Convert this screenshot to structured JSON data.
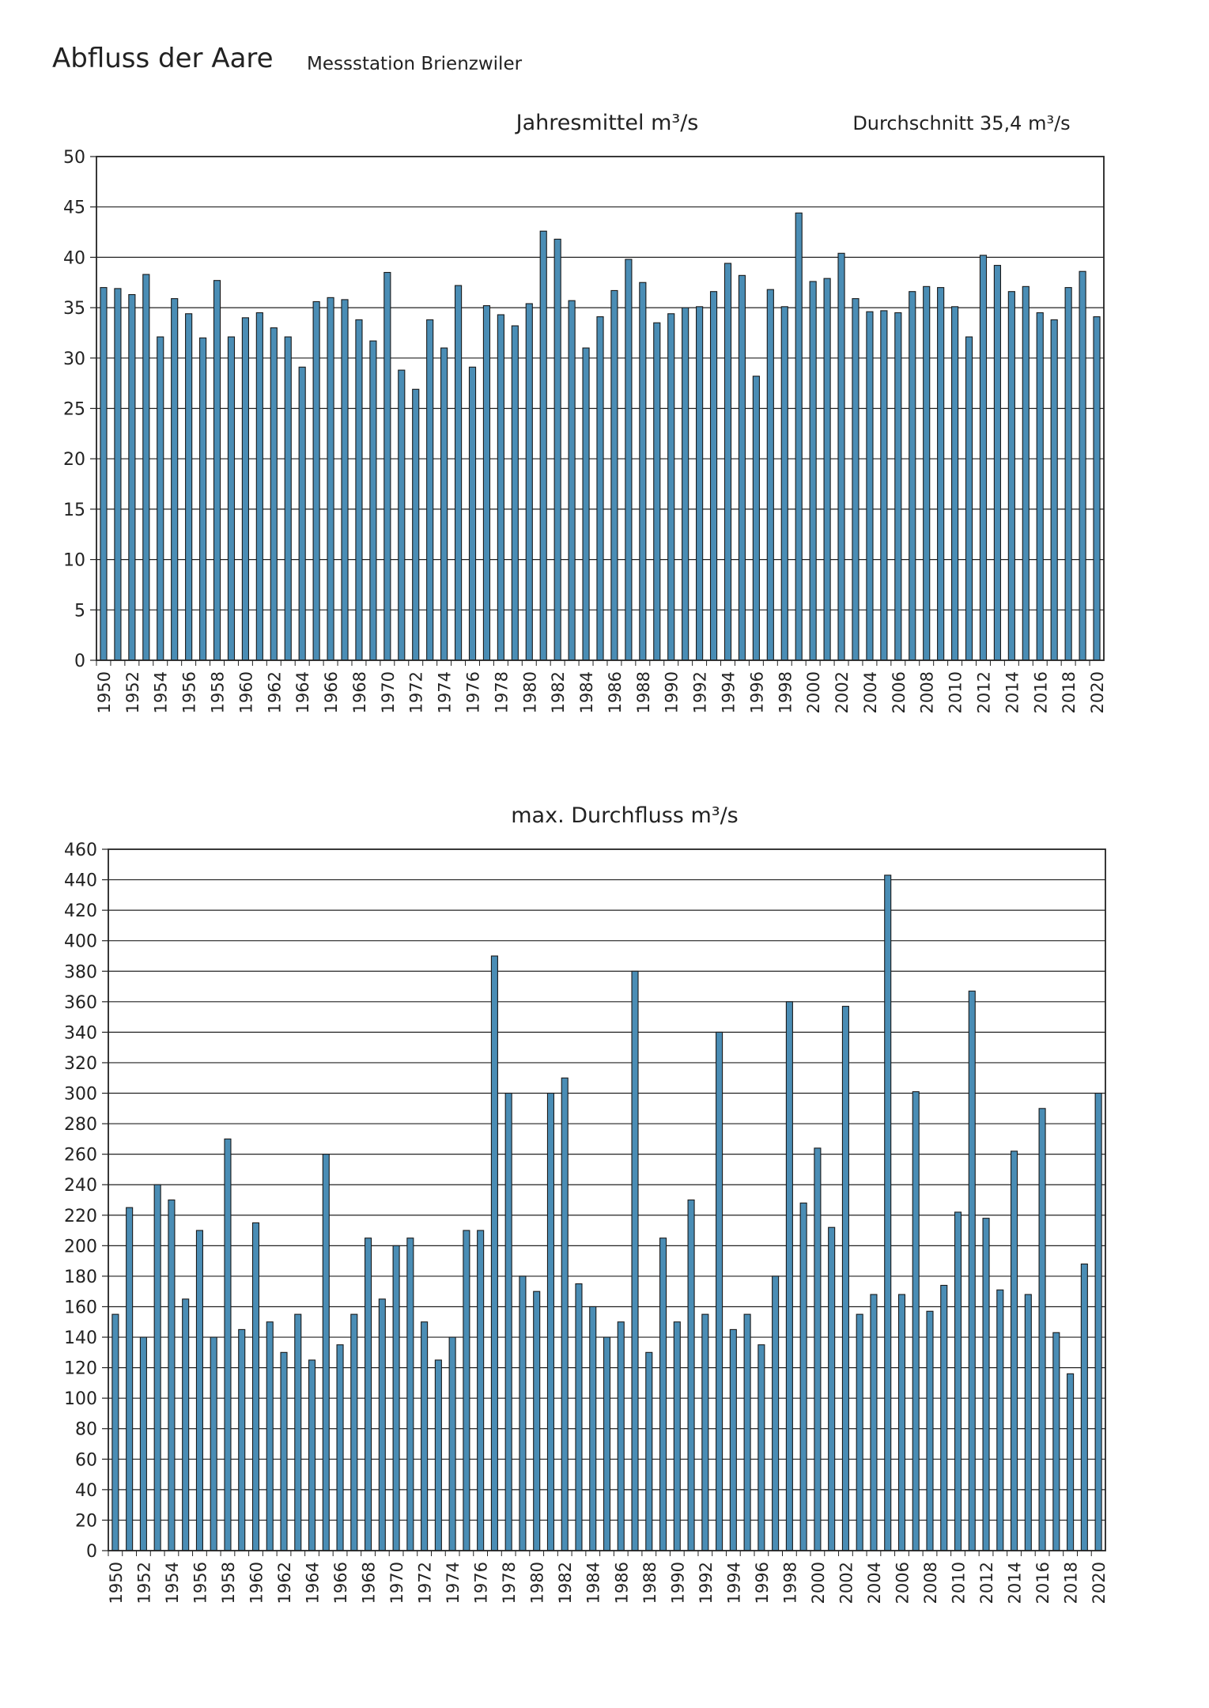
{
  "header": {
    "title": "Abfluss der Aare",
    "subtitle": "Messstation Brienzwiler"
  },
  "chart_data": [
    {
      "type": "bar",
      "title": "Jahresmittel m³/s",
      "annotation": "Durchschnitt 35,4 m³/s",
      "xlabel": "",
      "ylabel": "",
      "ylim": [
        0,
        50
      ],
      "yticks": [
        0,
        5,
        10,
        15,
        20,
        25,
        30,
        35,
        40,
        45,
        50
      ],
      "grid": true,
      "x_labels": [
        "1950",
        "1952",
        "1954",
        "1956",
        "1958",
        "1960",
        "1962",
        "1964",
        "1966",
        "1968",
        "1970",
        "1972",
        "1974",
        "1976",
        "1978",
        "1980",
        "1982",
        "1984",
        "1986",
        "1988",
        "1990",
        "1992",
        "1994",
        "1996",
        "1998",
        "2000",
        "2002",
        "2004",
        "2006",
        "2008",
        "2010",
        "2012",
        "2014",
        "2016",
        "2018",
        "2020"
      ],
      "categories": [
        1950,
        1951,
        1952,
        1953,
        1954,
        1955,
        1956,
        1957,
        1958,
        1959,
        1960,
        1961,
        1962,
        1963,
        1964,
        1965,
        1966,
        1967,
        1968,
        1969,
        1970,
        1971,
        1972,
        1973,
        1974,
        1975,
        1976,
        1977,
        1978,
        1979,
        1980,
        1981,
        1982,
        1983,
        1984,
        1985,
        1986,
        1987,
        1988,
        1989,
        1990,
        1991,
        1992,
        1993,
        1994,
        1995,
        1996,
        1997,
        1998,
        1999,
        2000,
        2001,
        2002,
        2003,
        2004,
        2005,
        2006,
        2007,
        2008,
        2009,
        2010,
        2011,
        2012,
        2013,
        2014,
        2015,
        2016,
        2017,
        2018,
        2019,
        2020
      ],
      "values": [
        37.0,
        36.9,
        36.3,
        38.3,
        32.1,
        35.9,
        34.4,
        32.0,
        37.7,
        32.1,
        34.0,
        34.5,
        33.0,
        32.1,
        29.1,
        35.6,
        36.0,
        35.8,
        33.8,
        31.7,
        38.5,
        28.8,
        26.9,
        33.8,
        31.0,
        37.2,
        29.1,
        35.2,
        34.3,
        33.2,
        35.4,
        42.6,
        41.8,
        35.7,
        31.0,
        34.1,
        36.7,
        39.8,
        37.5,
        33.5,
        34.4,
        35.0,
        35.1,
        36.6,
        39.4,
        38.2,
        28.2,
        36.8,
        35.1,
        44.4,
        37.6,
        37.9,
        40.4,
        35.9,
        34.6,
        34.7,
        34.5,
        36.6,
        37.1,
        37.0,
        35.1,
        32.1,
        40.2,
        39.2,
        36.6,
        37.1,
        34.5,
        33.8,
        37.0,
        38.6,
        34.1
      ]
    },
    {
      "type": "bar",
      "title": "max. Durchfluss m³/s",
      "xlabel": "",
      "ylabel": "",
      "ylim": [
        0,
        460
      ],
      "yticks": [
        0,
        20,
        40,
        60,
        80,
        100,
        120,
        140,
        160,
        180,
        200,
        220,
        240,
        260,
        280,
        300,
        320,
        340,
        360,
        380,
        400,
        420,
        440,
        460
      ],
      "grid": true,
      "x_labels": [
        "1950",
        "1952",
        "1954",
        "1956",
        "1958",
        "1960",
        "1962",
        "1964",
        "1966",
        "1968",
        "1970",
        "1972",
        "1974",
        "1976",
        "1978",
        "1980",
        "1982",
        "1984",
        "1986",
        "1988",
        "1990",
        "1992",
        "1994",
        "1996",
        "1998",
        "2000",
        "2002",
        "2004",
        "2006",
        "2008",
        "2010",
        "2012",
        "2014",
        "2016",
        "2018",
        "2020"
      ],
      "categories": [
        1950,
        1951,
        1952,
        1953,
        1954,
        1955,
        1956,
        1957,
        1958,
        1959,
        1960,
        1961,
        1962,
        1963,
        1964,
        1965,
        1966,
        1967,
        1968,
        1969,
        1970,
        1971,
        1972,
        1973,
        1974,
        1975,
        1976,
        1977,
        1978,
        1979,
        1980,
        1981,
        1982,
        1983,
        1984,
        1985,
        1986,
        1987,
        1988,
        1989,
        1990,
        1991,
        1992,
        1993,
        1994,
        1995,
        1996,
        1997,
        1998,
        1999,
        2000,
        2001,
        2002,
        2003,
        2004,
        2005,
        2006,
        2007,
        2008,
        2009,
        2010,
        2011,
        2012,
        2013,
        2014,
        2015,
        2016,
        2017,
        2018,
        2019,
        2020
      ],
      "values": [
        155,
        225,
        140,
        240,
        230,
        165,
        210,
        140,
        270,
        145,
        215,
        150,
        130,
        155,
        125,
        260,
        135,
        155,
        205,
        165,
        200,
        205,
        150,
        125,
        140,
        210,
        210,
        390,
        300,
        180,
        170,
        300,
        310,
        175,
        160,
        140,
        150,
        380,
        130,
        205,
        150,
        230,
        155,
        340,
        145,
        155,
        135,
        180,
        360,
        228,
        264,
        212,
        357,
        155,
        168,
        443,
        168,
        301,
        157,
        174,
        222,
        367,
        218,
        171,
        262,
        168,
        290,
        143,
        116,
        188,
        300
      ]
    }
  ],
  "style": {
    "bar_color": "#4a8db5",
    "bar_stroke": "#1a1a1a",
    "grid_color": "#222222"
  }
}
